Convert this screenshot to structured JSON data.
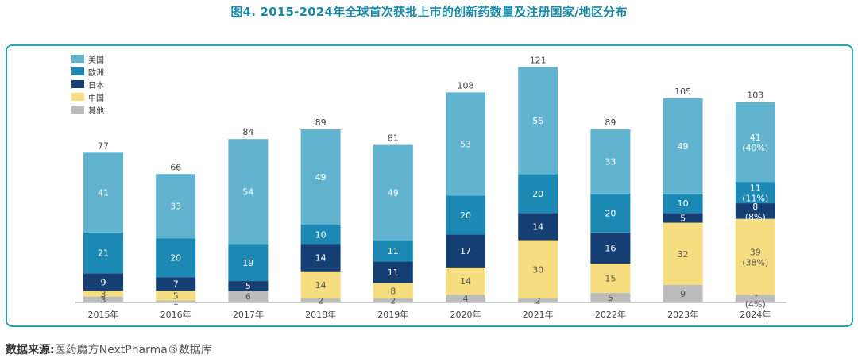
{
  "title": "图4. 2015-2024年全球首次获批上市的创新药数量及注册国家/地区分布",
  "source": {
    "label": "数据来源:",
    "value": "医药魔方NextPharma®数据库"
  },
  "legend": [
    {
      "name": "美国",
      "color": "#62b3d0"
    },
    {
      "name": "欧洲",
      "color": "#1c89b5"
    },
    {
      "name": "日本",
      "color": "#153f72"
    },
    {
      "name": "中国",
      "color": "#f6dd7f"
    },
    {
      "name": "其他",
      "color": "#bcbcbc"
    }
  ],
  "chart_data": {
    "type": "bar",
    "stacked": true,
    "categories": [
      "2015年",
      "2016年",
      "2017年",
      "2018年",
      "2019年",
      "2020年",
      "2021年",
      "2022年",
      "2023年",
      "2024年"
    ],
    "totals": [
      "77",
      "66",
      "84",
      "89",
      "81",
      "108",
      "121",
      "89",
      "105",
      "103"
    ],
    "series": [
      {
        "name": "其他",
        "color": "#bcbcbc",
        "values": [
          3,
          1,
          6,
          2,
          2,
          4,
          2,
          5,
          9,
          4
        ],
        "labels": [
          "3",
          "1",
          "6",
          "2",
          "2",
          "4",
          "2",
          "5",
          "9",
          "4"
        ],
        "label_color": "#555555"
      },
      {
        "name": "中国",
        "color": "#f6dd7f",
        "values": [
          3,
          5,
          0,
          14,
          8,
          14,
          30,
          15,
          32,
          39
        ],
        "labels": [
          "3",
          "5",
          "",
          "14",
          "8",
          "14",
          "30",
          "15",
          "32",
          "39"
        ],
        "label_color": "#555555"
      },
      {
        "name": "日本",
        "color": "#153f72",
        "values": [
          9,
          7,
          5,
          14,
          11,
          17,
          14,
          16,
          5,
          8
        ],
        "labels": [
          "9",
          "7",
          "5",
          "14",
          "11",
          "17",
          "14",
          "16",
          "5",
          "8"
        ],
        "label_color": "#ffffff"
      },
      {
        "name": "欧洲",
        "color": "#1c89b5",
        "values": [
          21,
          20,
          19,
          10,
          11,
          20,
          20,
          20,
          10,
          11
        ],
        "labels": [
          "21",
          "20",
          "19",
          "10",
          "11",
          "20",
          "20",
          "20",
          "10",
          "11"
        ],
        "label_color": "#ffffff"
      },
      {
        "name": "美国",
        "color": "#62b3d0",
        "values": [
          41,
          33,
          54,
          49,
          49,
          53,
          55,
          33,
          49,
          41
        ],
        "labels": [
          "41",
          "33",
          "54",
          "49",
          "49",
          "53",
          "55",
          "33",
          "49",
          "41"
        ],
        "label_color": "#ffffff"
      }
    ],
    "extra_labels_2024": {
      "美国": "(40%)",
      "欧洲": "(11%)",
      "日本": "(8%)",
      "中国": "(38%)",
      "其他": "(4%)"
    },
    "ylim": [
      0,
      121
    ]
  }
}
